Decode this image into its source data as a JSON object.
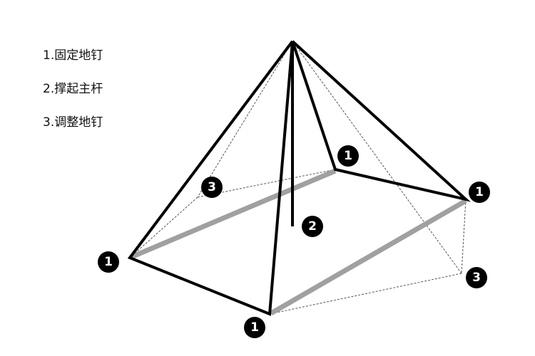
{
  "steps": [
    {
      "label": "1.固定地钉"
    },
    {
      "label": "2.撑起主杆"
    },
    {
      "label": "3.调整地钉"
    }
  ],
  "badges": {
    "stake": "1",
    "pole": "2",
    "adjust": "3"
  },
  "colors": {
    "frame": "#000000",
    "ground_edge": "#a0a0a0",
    "guide": "#555555",
    "badge_fill": "#000000",
    "badge_text": "#ffffff"
  }
}
